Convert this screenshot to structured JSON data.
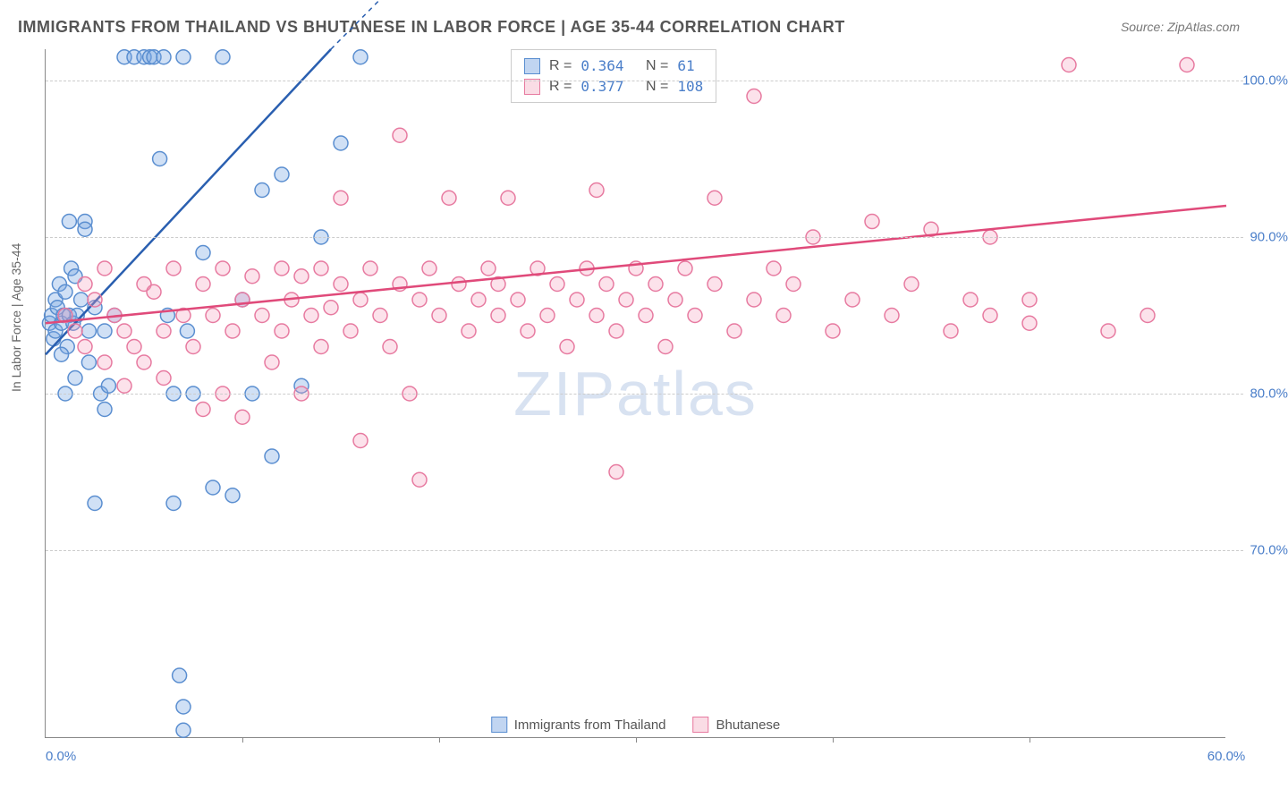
{
  "header": {
    "title": "IMMIGRANTS FROM THAILAND VS BHUTANESE IN LABOR FORCE | AGE 35-44 CORRELATION CHART",
    "source": "Source: ZipAtlas.com"
  },
  "axes": {
    "y_title": "In Labor Force | Age 35-44",
    "xlim": [
      0,
      60
    ],
    "ylim": [
      58,
      102
    ],
    "x_ticks": [
      0,
      20,
      40,
      60
    ],
    "x_tick_labels": [
      "0.0%",
      "",
      "",
      "60.0%"
    ],
    "x_minor_ticks": [
      10,
      20,
      30,
      40,
      50
    ],
    "y_ticks": [
      70,
      80,
      90,
      100
    ],
    "y_tick_labels": [
      "70.0%",
      "80.0%",
      "90.0%",
      "100.0%"
    ],
    "grid_color": "#cccccc",
    "axis_color": "#888888",
    "label_color": "#4a7ec9",
    "label_fontsize": 15
  },
  "watermark": {
    "text_bold": "ZIP",
    "text_light": "atlas",
    "color": "rgba(100,140,200,0.25)",
    "fontsize": 70
  },
  "stats": {
    "rows": [
      {
        "swatch": "blue",
        "r_label": "R =",
        "r_val": "0.364",
        "n_label": "N =",
        "n_val": " 61"
      },
      {
        "swatch": "pink",
        "r_label": "R =",
        "r_val": "0.377",
        "n_label": "N =",
        "n_val": "108"
      }
    ]
  },
  "legend": {
    "items": [
      {
        "swatch": "blue",
        "label": "Immigrants from Thailand"
      },
      {
        "swatch": "pink",
        "label": "Bhutanese"
      }
    ]
  },
  "series": [
    {
      "name": "thailand",
      "type": "scatter",
      "marker": {
        "shape": "circle",
        "radius": 8,
        "fill": "rgba(120,165,225,0.35)",
        "stroke": "#5a8ed0",
        "stroke_width": 1.5
      },
      "trendline": {
        "x1": 0,
        "y1": 82.5,
        "x2": 14.5,
        "y2": 102,
        "stroke": "#2a5fb0",
        "stroke_width": 2.5,
        "dash_extend": {
          "x2": 20,
          "y2": 109
        }
      },
      "points": [
        [
          0.2,
          84.5
        ],
        [
          0.3,
          85
        ],
        [
          0.4,
          83.5
        ],
        [
          0.5,
          86
        ],
        [
          0.5,
          84
        ],
        [
          0.6,
          85.5
        ],
        [
          0.7,
          87
        ],
        [
          0.8,
          84.5
        ],
        [
          0.9,
          85
        ],
        [
          1.0,
          86.5
        ],
        [
          1.1,
          83
        ],
        [
          1.2,
          85
        ],
        [
          1.3,
          88
        ],
        [
          1.4,
          84.5
        ],
        [
          1.5,
          87.5
        ],
        [
          1.6,
          85
        ],
        [
          1.8,
          86
        ],
        [
          2.0,
          91
        ],
        [
          2.0,
          90.5
        ],
        [
          2.2,
          84
        ],
        [
          2.5,
          85.5
        ],
        [
          2.8,
          80
        ],
        [
          3.0,
          84
        ],
        [
          3.2,
          80.5
        ],
        [
          3.5,
          85
        ],
        [
          4.0,
          101.5
        ],
        [
          4.5,
          101.5
        ],
        [
          5.0,
          101.5
        ],
        [
          5.3,
          101.5
        ],
        [
          5.5,
          101.5
        ],
        [
          5.8,
          95
        ],
        [
          6.0,
          101.5
        ],
        [
          6.2,
          85
        ],
        [
          6.5,
          80
        ],
        [
          7.0,
          101.5
        ],
        [
          7.2,
          84
        ],
        [
          7.5,
          80
        ],
        [
          8.0,
          89
        ],
        [
          8.5,
          74
        ],
        [
          9.0,
          101.5
        ],
        [
          9.5,
          73.5
        ],
        [
          10.0,
          86
        ],
        [
          10.5,
          80
        ],
        [
          11.0,
          93
        ],
        [
          11.5,
          76
        ],
        [
          12.0,
          94
        ],
        [
          13.0,
          80.5
        ],
        [
          14.0,
          90
        ],
        [
          15.0,
          96
        ],
        [
          16.0,
          101.5
        ],
        [
          1.5,
          81
        ],
        [
          2.2,
          82
        ],
        [
          3.0,
          79
        ],
        [
          0.8,
          82.5
        ],
        [
          1.0,
          80
        ],
        [
          2.5,
          73
        ],
        [
          6.5,
          73
        ],
        [
          6.8,
          62
        ],
        [
          7.0,
          60
        ],
        [
          7.0,
          58.5
        ],
        [
          1.2,
          91
        ]
      ]
    },
    {
      "name": "bhutanese",
      "type": "scatter",
      "marker": {
        "shape": "circle",
        "radius": 8,
        "fill": "rgba(245,160,190,0.3)",
        "stroke": "#e77aa0",
        "stroke_width": 1.5
      },
      "trendline": {
        "x1": 0,
        "y1": 84.5,
        "x2": 60,
        "y2": 92,
        "stroke": "#e04a7a",
        "stroke_width": 2.5
      },
      "points": [
        [
          1,
          85
        ],
        [
          1.5,
          84
        ],
        [
          2,
          83
        ],
        [
          2,
          87
        ],
        [
          2.5,
          86
        ],
        [
          3,
          82
        ],
        [
          3,
          88
        ],
        [
          3.5,
          85
        ],
        [
          4,
          84
        ],
        [
          4,
          80.5
        ],
        [
          4.5,
          83
        ],
        [
          5,
          87
        ],
        [
          5,
          82
        ],
        [
          5.5,
          86.5
        ],
        [
          6,
          84
        ],
        [
          6,
          81
        ],
        [
          6.5,
          88
        ],
        [
          7,
          85
        ],
        [
          7.5,
          83
        ],
        [
          8,
          87
        ],
        [
          8,
          79
        ],
        [
          8.5,
          85
        ],
        [
          9,
          88
        ],
        [
          9,
          80
        ],
        [
          9.5,
          84
        ],
        [
          10,
          86
        ],
        [
          10,
          78.5
        ],
        [
          10.5,
          87.5
        ],
        [
          11,
          85
        ],
        [
          11.5,
          82
        ],
        [
          12,
          88
        ],
        [
          12,
          84
        ],
        [
          12.5,
          86
        ],
        [
          13,
          87.5
        ],
        [
          13,
          80
        ],
        [
          13.5,
          85
        ],
        [
          14,
          88
        ],
        [
          14,
          83
        ],
        [
          14.5,
          85.5
        ],
        [
          15,
          87
        ],
        [
          15,
          92.5
        ],
        [
          15.5,
          84
        ],
        [
          16,
          86
        ],
        [
          16,
          77
        ],
        [
          16.5,
          88
        ],
        [
          17,
          85
        ],
        [
          17.5,
          83
        ],
        [
          18,
          87
        ],
        [
          18,
          96.5
        ],
        [
          18.5,
          80
        ],
        [
          19,
          86
        ],
        [
          19,
          74.5
        ],
        [
          19.5,
          88
        ],
        [
          20,
          85
        ],
        [
          20.5,
          92.5
        ],
        [
          21,
          87
        ],
        [
          21.5,
          84
        ],
        [
          22,
          86
        ],
        [
          22.5,
          88
        ],
        [
          23,
          85
        ],
        [
          23,
          87
        ],
        [
          23.5,
          92.5
        ],
        [
          24,
          86
        ],
        [
          24.5,
          84
        ],
        [
          25,
          88
        ],
        [
          25.5,
          85
        ],
        [
          26,
          87
        ],
        [
          26.5,
          83
        ],
        [
          27,
          86
        ],
        [
          27.5,
          88
        ],
        [
          28,
          85
        ],
        [
          28,
          93
        ],
        [
          28.5,
          87
        ],
        [
          29,
          84
        ],
        [
          29,
          75
        ],
        [
          29.5,
          86
        ],
        [
          30,
          88
        ],
        [
          30.5,
          85
        ],
        [
          31,
          87
        ],
        [
          31.5,
          83
        ],
        [
          32,
          86
        ],
        [
          32.5,
          88
        ],
        [
          33,
          85
        ],
        [
          34,
          87
        ],
        [
          34,
          92.5
        ],
        [
          35,
          84
        ],
        [
          36,
          86
        ],
        [
          36,
          99
        ],
        [
          37,
          88
        ],
        [
          37.5,
          85
        ],
        [
          38,
          87
        ],
        [
          39,
          90
        ],
        [
          40,
          84
        ],
        [
          41,
          86
        ],
        [
          42,
          91
        ],
        [
          43,
          85
        ],
        [
          44,
          87
        ],
        [
          45,
          90.5
        ],
        [
          46,
          84
        ],
        [
          47,
          86
        ],
        [
          48,
          85
        ],
        [
          50,
          84.5
        ],
        [
          52,
          101
        ],
        [
          54,
          84
        ],
        [
          56,
          85
        ],
        [
          58,
          101
        ],
        [
          50,
          86
        ],
        [
          48,
          90
        ]
      ]
    }
  ]
}
